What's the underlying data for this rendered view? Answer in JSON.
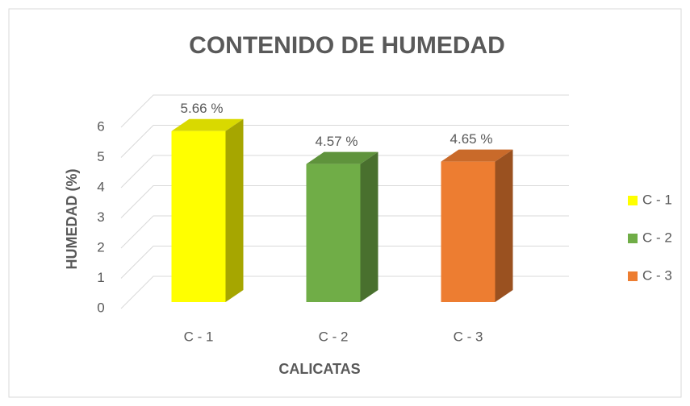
{
  "chart_data": {
    "type": "bar3d",
    "title": "CONTENIDO DE HUMEDAD",
    "categories": [
      "C - 1",
      "C - 2",
      "C - 3"
    ],
    "values": [
      5.66,
      4.57,
      4.65
    ],
    "value_labels": [
      "5.66 %",
      "4.57 %",
      "4.65 %"
    ],
    "colors": [
      "#ffff00",
      "#70ad47",
      "#ed7d31"
    ],
    "ylim": [
      0,
      6
    ],
    "yticks": [
      0,
      1,
      2,
      3,
      4,
      5,
      6
    ],
    "grid": true,
    "ylabel": "HUMEDAD (%)",
    "xlabel": "CALICATAS",
    "legend": "right"
  }
}
